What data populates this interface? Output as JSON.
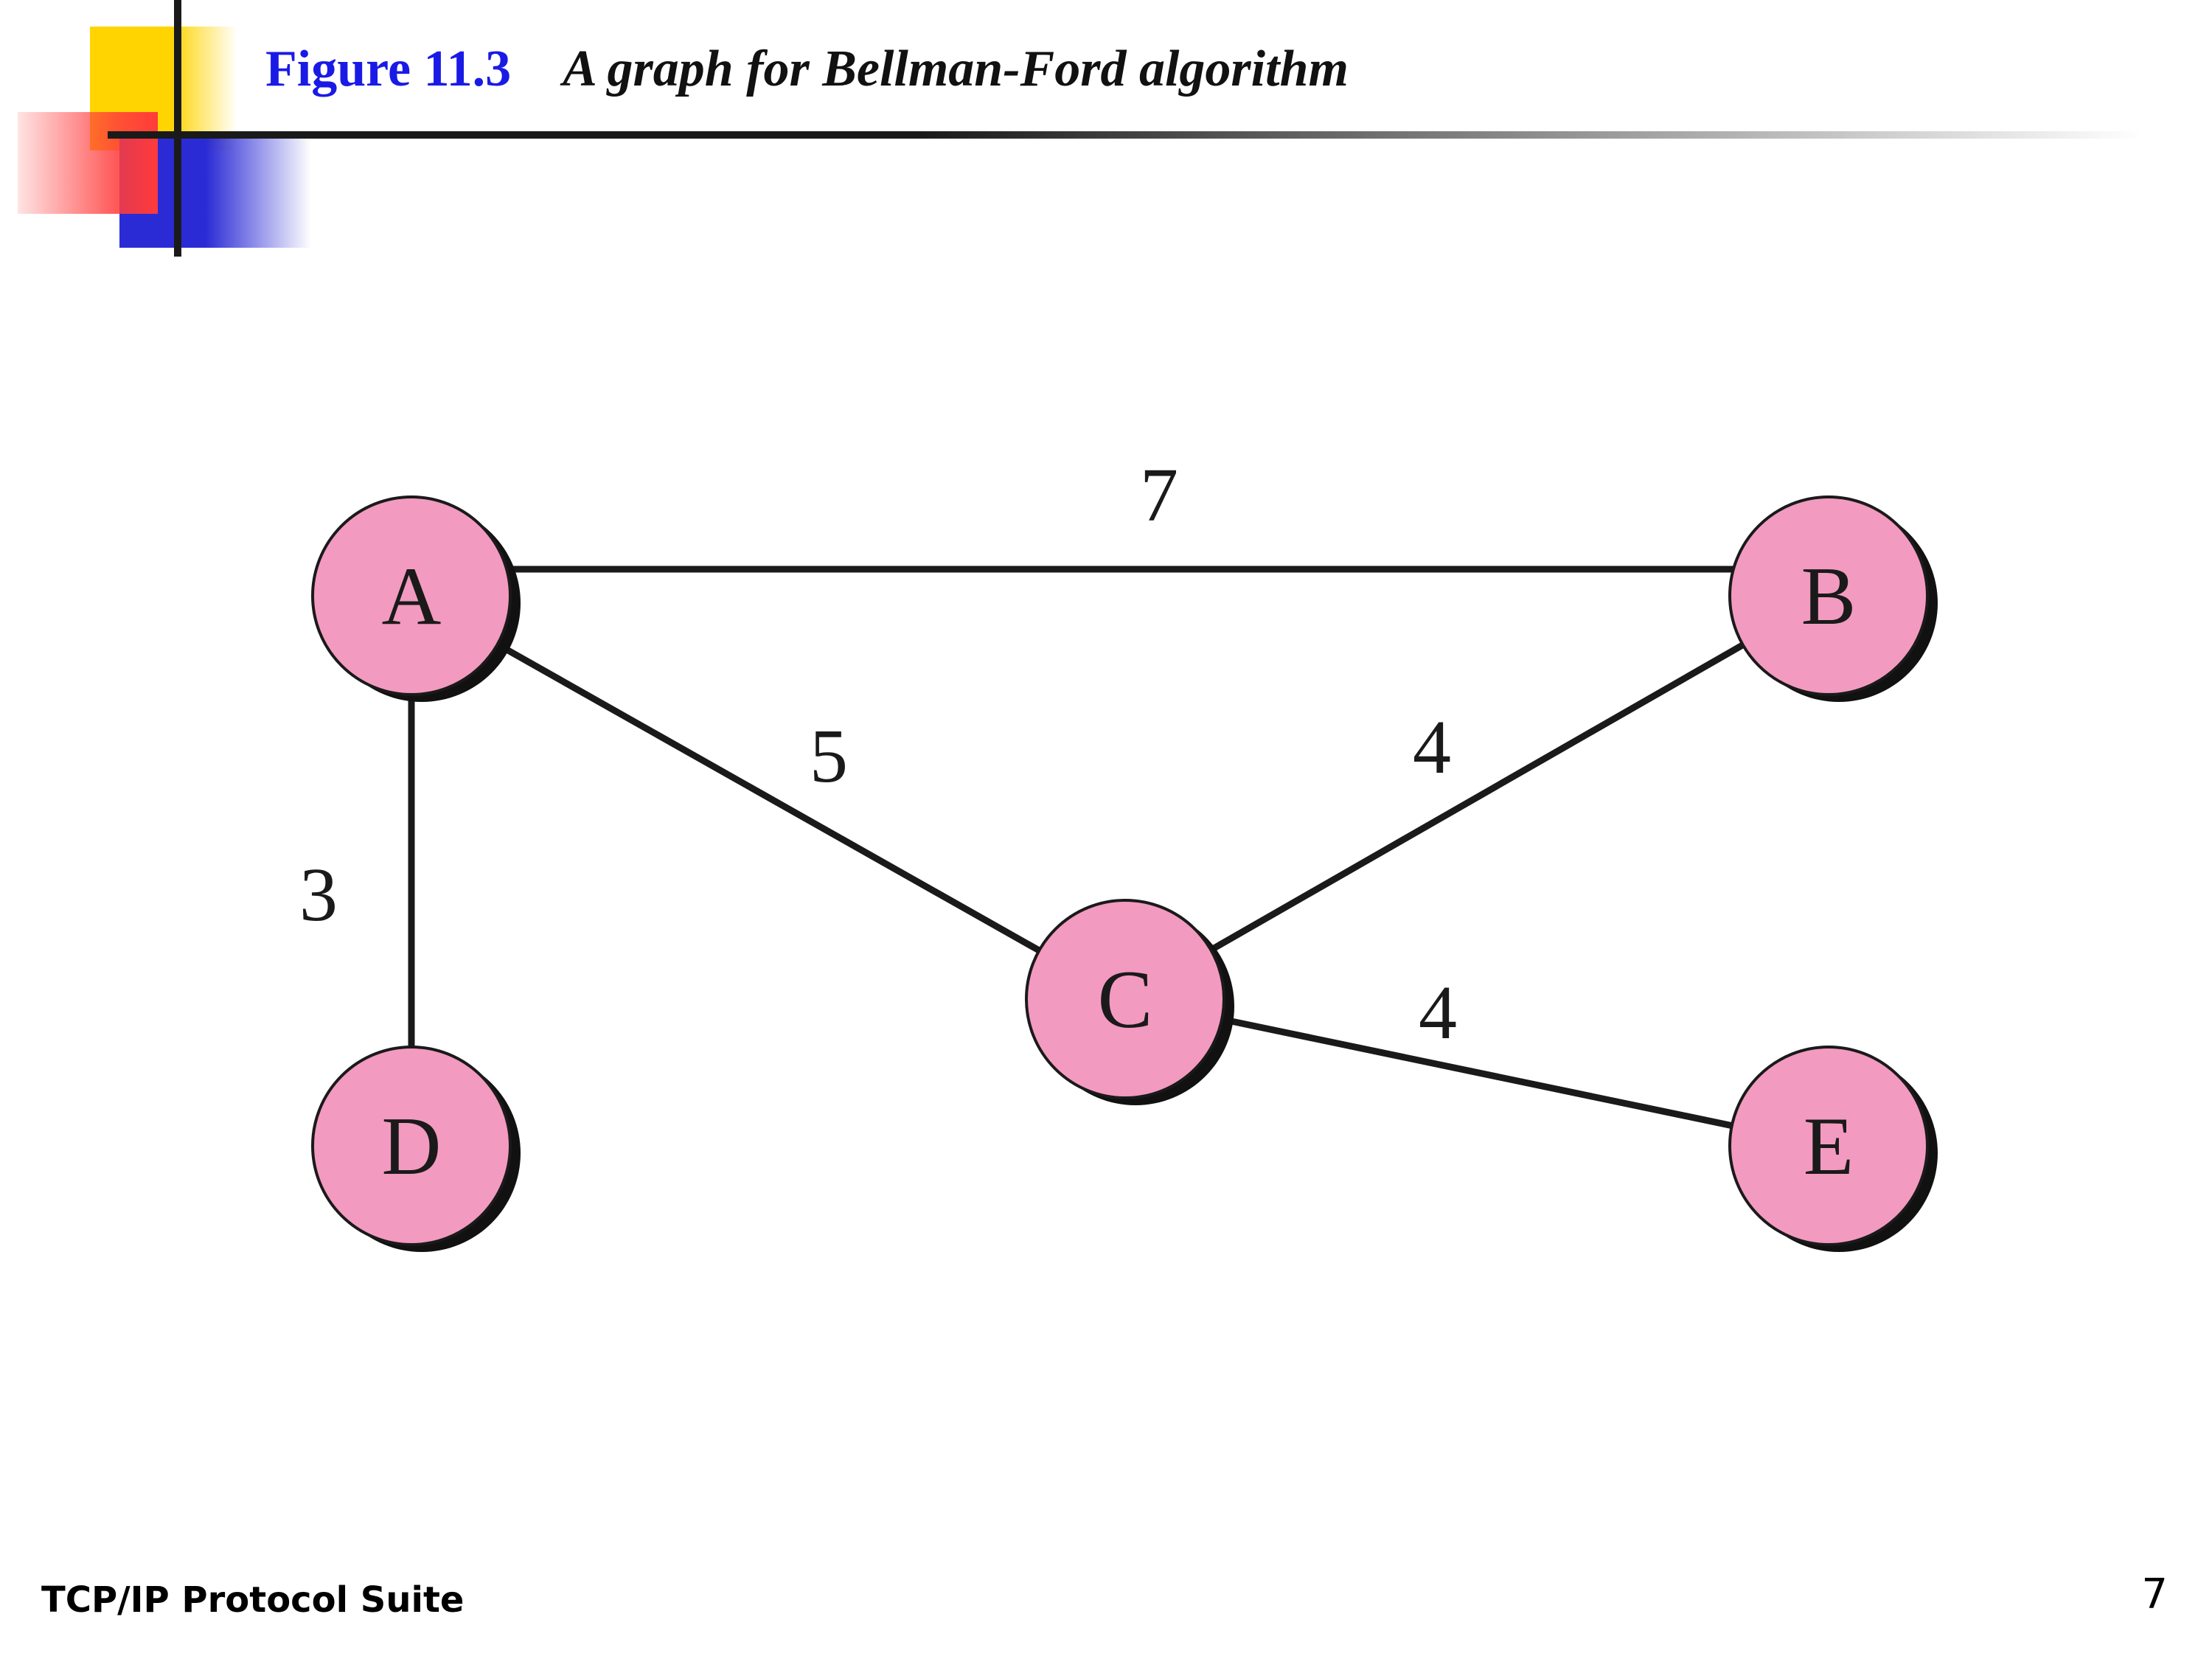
{
  "slide": {
    "figure_label": "Figure 11.3",
    "caption": "A graph for Bellman-Ford algorithm",
    "footer": "TCP/IP Protocol Suite",
    "page_number": "7"
  },
  "graph": {
    "node_color": "#f39ac0",
    "nodes": [
      "A",
      "B",
      "C",
      "D",
      "E"
    ],
    "edges": [
      {
        "from": "A",
        "to": "B",
        "weight": "7"
      },
      {
        "from": "A",
        "to": "C",
        "weight": "5"
      },
      {
        "from": "A",
        "to": "D",
        "weight": "3"
      },
      {
        "from": "C",
        "to": "B",
        "weight": "4"
      },
      {
        "from": "C",
        "to": "E",
        "weight": "4"
      }
    ]
  }
}
